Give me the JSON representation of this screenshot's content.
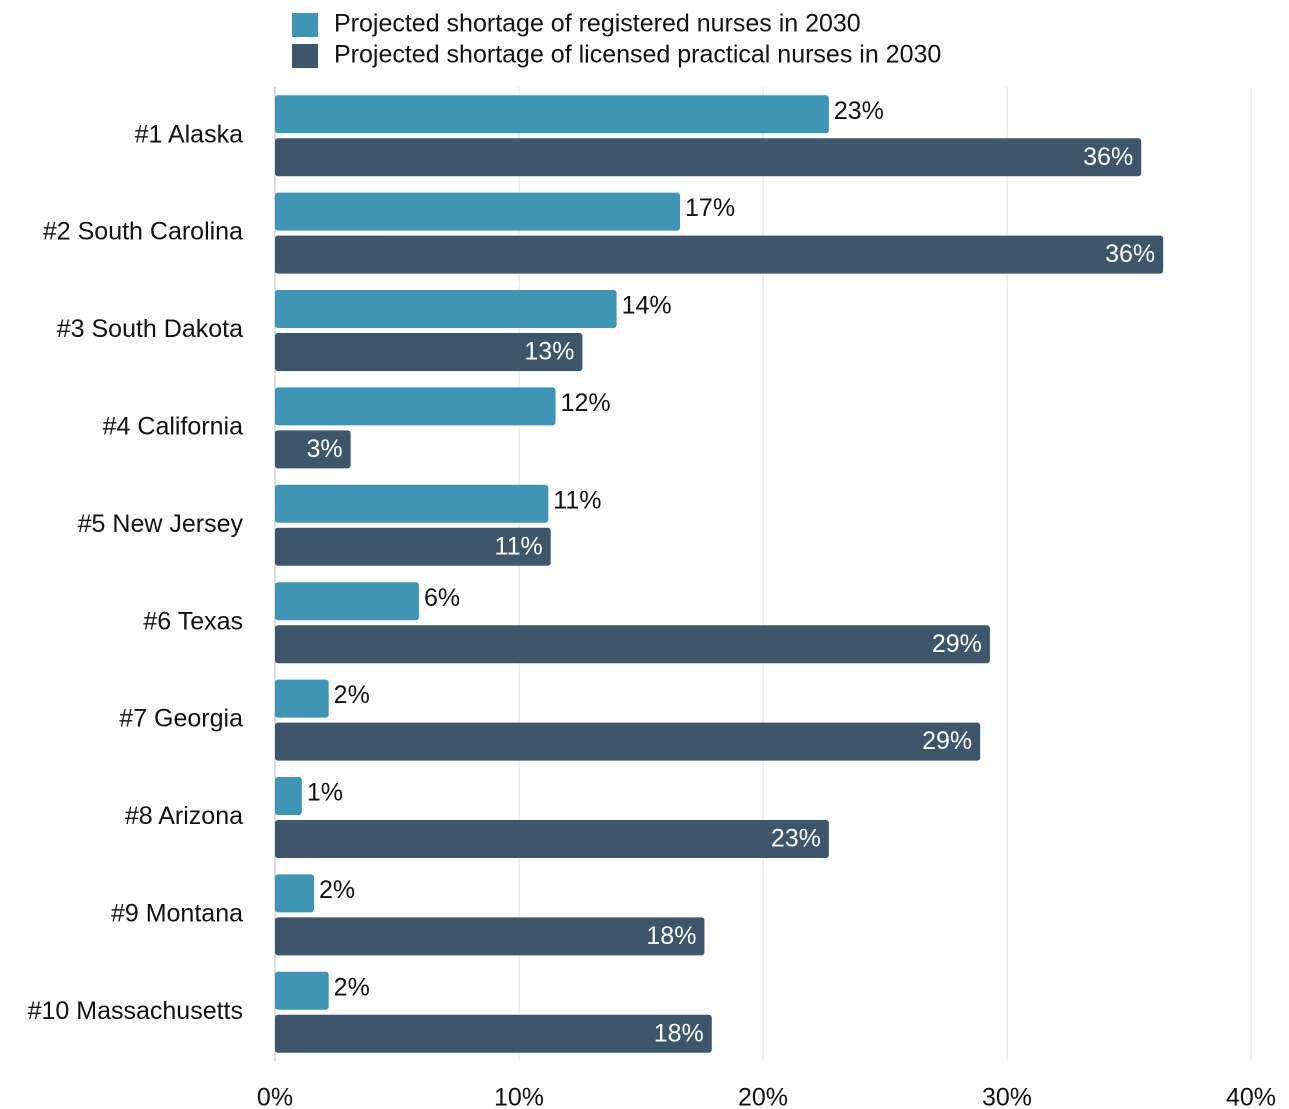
{
  "chart_data": {
    "type": "hbar",
    "categories": [
      "#1 Alaska",
      "#2 South Carolina",
      "#3 South Dakota",
      "#4 California",
      "#5 New Jersey",
      "#6 Texas",
      "#7 Georgia",
      "#8 Arizona",
      "#9 Montana",
      "#10 Massachusetts"
    ],
    "series": [
      {
        "name": "Projected shortage of registered nurses in 2030",
        "color": "#4095b5",
        "values": [
          22.7,
          16.6,
          14.0,
          11.5,
          11.2,
          5.9,
          2.2,
          1.1,
          1.6,
          2.2
        ],
        "value_labels": [
          "23%",
          "17%",
          "14%",
          "12%",
          "11%",
          "6%",
          "2%",
          "1%",
          "2%",
          "2%"
        ]
      },
      {
        "name": "Projected shortage of licensed practical nurses in 2030",
        "color": "#3d566b",
        "values": [
          35.5,
          36.4,
          12.6,
          3.1,
          11.3,
          29.3,
          28.9,
          22.7,
          17.6,
          17.9
        ],
        "value_labels": [
          "36%",
          "36%",
          "13%",
          "3%",
          "11%",
          "29%",
          "29%",
          "23%",
          "18%",
          "18%"
        ]
      }
    ],
    "xlim": [
      0,
      40
    ],
    "xticks": [
      {
        "value": 0,
        "label": "0%"
      },
      {
        "value": 10,
        "label": "10%"
      },
      {
        "value": 20,
        "label": "20%"
      },
      {
        "value": 30,
        "label": "30%"
      },
      {
        "value": 40,
        "label": "40%"
      }
    ],
    "grid": true,
    "legend": "top"
  }
}
